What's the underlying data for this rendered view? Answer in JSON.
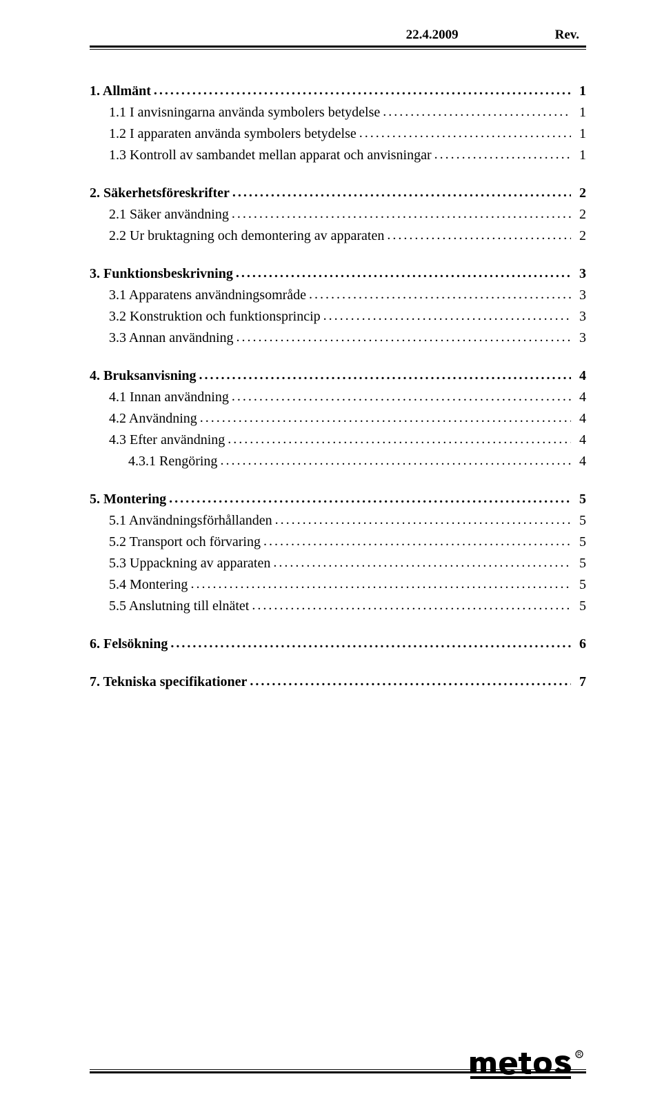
{
  "header": {
    "date": "22.4.2009",
    "rev": "Rev."
  },
  "toc": [
    {
      "level": 1,
      "label": "1. Allmänt",
      "page": "1"
    },
    {
      "level": 2,
      "label": "1.1 I anvisningarna använda symbolers betydelse",
      "page": "1"
    },
    {
      "level": 2,
      "label": "1.2 I apparaten använda symbolers betydelse",
      "page": "1"
    },
    {
      "level": 2,
      "label": "1.3 Kontroll av sambandet mellan apparat och anvisningar",
      "page": "1"
    },
    {
      "level": 1,
      "label": "2. Säkerhetsföreskrifter",
      "page": "2"
    },
    {
      "level": 2,
      "label": "2.1 Säker användning",
      "page": "2"
    },
    {
      "level": 2,
      "label": "2.2 Ur bruktagning och demontering av apparaten",
      "page": "2"
    },
    {
      "level": 1,
      "label": "3. Funktionsbeskrivning",
      "page": "3"
    },
    {
      "level": 2,
      "label": "3.1 Apparatens användningsområde",
      "page": "3"
    },
    {
      "level": 2,
      "label": "3.2 Konstruktion och funktionsprincip",
      "page": "3"
    },
    {
      "level": 2,
      "label": "3.3 Annan användning",
      "page": "3"
    },
    {
      "level": 1,
      "label": "4. Bruksanvisning",
      "page": "4"
    },
    {
      "level": 2,
      "label": "4.1 Innan användning",
      "page": "4"
    },
    {
      "level": 2,
      "label": "4.2 Användning",
      "page": "4"
    },
    {
      "level": 2,
      "label": "4.3 Efter användning",
      "page": "4"
    },
    {
      "level": 3,
      "label": "4.3.1 Rengöring",
      "page": "4"
    },
    {
      "level": 1,
      "label": "5. Montering",
      "page": "5"
    },
    {
      "level": 2,
      "label": "5.1 Användningsförhållanden",
      "page": "5"
    },
    {
      "level": 2,
      "label": "5.2 Transport och förvaring",
      "page": "5"
    },
    {
      "level": 2,
      "label": "5.3 Uppackning av apparaten",
      "page": "5"
    },
    {
      "level": 2,
      "label": "5.4 Montering",
      "page": "5"
    },
    {
      "level": 2,
      "label": "5.5 Anslutning till elnätet",
      "page": "5"
    },
    {
      "level": 1,
      "label": "6. Felsökning",
      "page": "6"
    },
    {
      "level": 1,
      "label": "7. Tekniska specifikationer",
      "page": "7"
    }
  ],
  "logo_text": "metos"
}
